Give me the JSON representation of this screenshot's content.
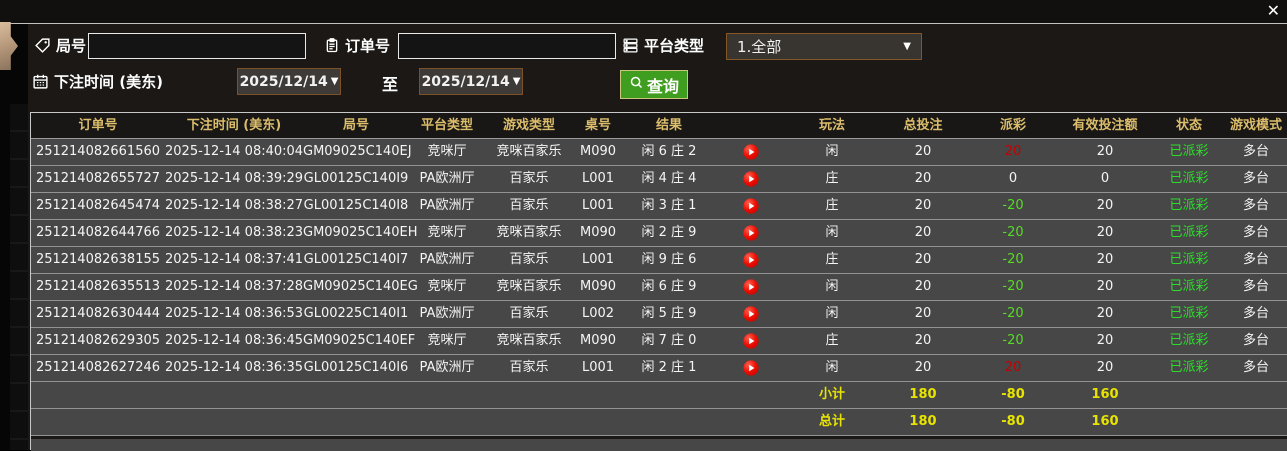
{
  "window": {
    "close_icon": "✕"
  },
  "colors": {
    "accent_gold": "#dcbd6c",
    "payout_positive": "#c40000",
    "payout_negative": "#55dd22",
    "status_paid": "#2ddd2d",
    "summary_yellow": "#e8e400",
    "query_green": "#3f9d1f",
    "dropdown_border": "#875626"
  },
  "filters": {
    "round_label": "局号",
    "round_value": "",
    "order_label": "订单号",
    "order_value": "",
    "platform_label": "平台类型",
    "platform_value": "1.全部",
    "time_label": "下注时间 (美东)",
    "date_from": "2025/12/14",
    "to_label": "至",
    "date_to": "2025/12/14",
    "query_label": "查询",
    "dropdown_arrow": "▼"
  },
  "table": {
    "headers": [
      "订单号",
      "下注时间 (美东)",
      "局号",
      "平台类型",
      "游戏类型",
      "桌号",
      "结果",
      "",
      "玩法",
      "总投注",
      "派彩",
      "有效投注额",
      "状态",
      "游戏模式"
    ],
    "rows": [
      {
        "order": "251214082661560",
        "time": "2025-12-14 08:40:04",
        "round": "GM09025C140EJ",
        "platform": "竞咪厅",
        "game": "竞咪百家乐",
        "table": "M090",
        "result": "闲 6 庄 2",
        "method": "闲",
        "bet": "20",
        "payout": "20",
        "payout_color": "red",
        "valid": "20",
        "status": "已派彩",
        "mode": "多台"
      },
      {
        "order": "251214082655727",
        "time": "2025-12-14 08:39:29",
        "round": "GL00125C140I9",
        "platform": "PA欧洲厅",
        "game": "百家乐",
        "table": "L001",
        "result": "闲 4 庄 4",
        "method": "庄",
        "bet": "20",
        "payout": "0",
        "payout_color": "white",
        "valid": "0",
        "status": "已派彩",
        "mode": "多台"
      },
      {
        "order": "251214082645474",
        "time": "2025-12-14 08:38:27",
        "round": "GL00125C140I8",
        "platform": "PA欧洲厅",
        "game": "百家乐",
        "table": "L001",
        "result": "闲 3 庄 1",
        "method": "庄",
        "bet": "20",
        "payout": "-20",
        "payout_color": "green",
        "valid": "20",
        "status": "已派彩",
        "mode": "多台"
      },
      {
        "order": "251214082644766",
        "time": "2025-12-14 08:38:23",
        "round": "GM09025C140EH",
        "platform": "竞咪厅",
        "game": "竞咪百家乐",
        "table": "M090",
        "result": "闲 2 庄 9",
        "method": "闲",
        "bet": "20",
        "payout": "-20",
        "payout_color": "green",
        "valid": "20",
        "status": "已派彩",
        "mode": "多台"
      },
      {
        "order": "251214082638155",
        "time": "2025-12-14 08:37:41",
        "round": "GL00125C140I7",
        "platform": "PA欧洲厅",
        "game": "百家乐",
        "table": "L001",
        "result": "闲 9 庄 6",
        "method": "庄",
        "bet": "20",
        "payout": "-20",
        "payout_color": "green",
        "valid": "20",
        "status": "已派彩",
        "mode": "多台"
      },
      {
        "order": "251214082635513",
        "time": "2025-12-14 08:37:28",
        "round": "GM09025C140EG",
        "platform": "竞咪厅",
        "game": "竞咪百家乐",
        "table": "M090",
        "result": "闲 6 庄 9",
        "method": "闲",
        "bet": "20",
        "payout": "-20",
        "payout_color": "green",
        "valid": "20",
        "status": "已派彩",
        "mode": "多台"
      },
      {
        "order": "251214082630444",
        "time": "2025-12-14 08:36:53",
        "round": "GL00225C140I1",
        "platform": "PA欧洲厅",
        "game": "百家乐",
        "table": "L002",
        "result": "闲 5 庄 9",
        "method": "闲",
        "bet": "20",
        "payout": "-20",
        "payout_color": "green",
        "valid": "20",
        "status": "已派彩",
        "mode": "多台"
      },
      {
        "order": "251214082629305",
        "time": "2025-12-14 08:36:45",
        "round": "GM09025C140EF",
        "platform": "竞咪厅",
        "game": "竞咪百家乐",
        "table": "M090",
        "result": "闲 7 庄 0",
        "method": "庄",
        "bet": "20",
        "payout": "-20",
        "payout_color": "green",
        "valid": "20",
        "status": "已派彩",
        "mode": "多台"
      },
      {
        "order": "251214082627246",
        "time": "2025-12-14 08:36:35",
        "round": "GL00125C140I6",
        "platform": "PA欧洲厅",
        "game": "百家乐",
        "table": "L001",
        "result": "闲 2 庄 1",
        "method": "闲",
        "bet": "20",
        "payout": "20",
        "payout_color": "red",
        "valid": "20",
        "status": "已派彩",
        "mode": "多台"
      }
    ],
    "subtotal": {
      "label": "小计",
      "bet": "180",
      "payout": "-80",
      "valid": "160"
    },
    "total": {
      "label": "总计",
      "bet": "180",
      "payout": "-80",
      "valid": "160"
    }
  }
}
